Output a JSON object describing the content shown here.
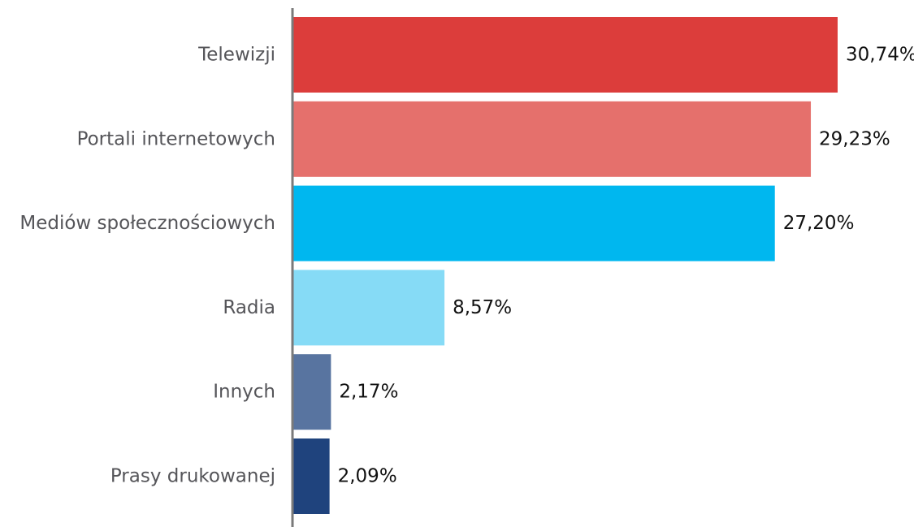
{
  "chart_data": {
    "type": "bar",
    "orientation": "horizontal",
    "categories": [
      "Telewizji",
      "Portali internetowych",
      "Mediów społecznościowych",
      "Radia",
      "Innych",
      "Prasy drukowanej"
    ],
    "values": [
      30.74,
      29.23,
      27.2,
      8.57,
      2.17,
      2.09
    ],
    "value_labels": [
      "30,74%",
      "29,23%",
      "27,20%",
      "8,57%",
      "2,17%",
      "2,09%"
    ],
    "bar_colors": [
      "#dc3d3b",
      "#e5706c",
      "#00b7ef",
      "#86dbf6",
      "#5874a0",
      "#1f437d"
    ],
    "axis_color": "#7a7a7a",
    "title": "",
    "xlabel": "",
    "ylabel": "",
    "xlim": [
      0,
      30.74
    ],
    "grid": false,
    "legend": "none"
  }
}
